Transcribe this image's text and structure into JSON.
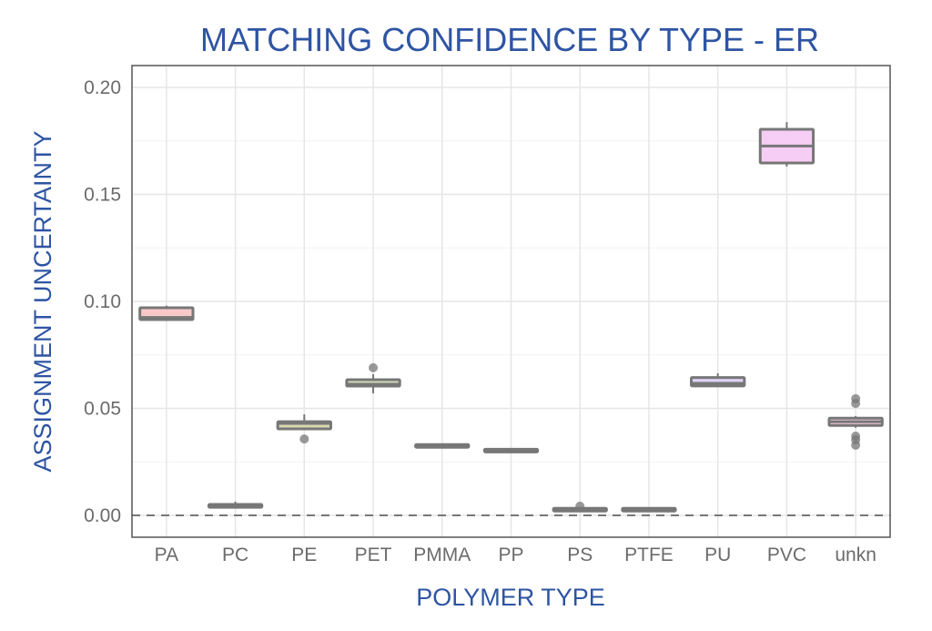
{
  "chart_data": {
    "type": "boxplot",
    "title": "MATCHING CONFIDENCE BY TYPE - ER",
    "xlabel": "POLYMER TYPE",
    "ylabel": "ASSIGNMENT UNCERTAINTY",
    "ylim": [
      -0.004,
      0.211
    ],
    "yticks": [
      "0.00",
      "0.05",
      "0.10",
      "0.15",
      "0.20"
    ],
    "ytick_values": [
      0,
      0.05,
      0.1,
      0.15,
      0.2
    ],
    "grid": true,
    "reference_line": {
      "y": 0,
      "style": "dashed"
    },
    "categories": [
      "PA",
      "PC",
      "PE",
      "PET",
      "PMMA",
      "PP",
      "PS",
      "PTFE",
      "PU",
      "PVC",
      "unkn"
    ],
    "boxes": [
      {
        "name": "PA",
        "lower": 0.091,
        "q1": 0.0915,
        "median": 0.0925,
        "q3": 0.097,
        "upper": 0.098,
        "outliers": [],
        "fill": "#f9c9c9"
      },
      {
        "name": "PC",
        "lower": 0.0038,
        "q1": 0.0038,
        "median": 0.0045,
        "q3": 0.0051,
        "upper": 0.0064,
        "outliers": [],
        "fill": "#e6dcc0"
      },
      {
        "name": "PE",
        "lower": 0.0404,
        "q1": 0.0404,
        "median": 0.043,
        "q3": 0.0438,
        "upper": 0.0472,
        "outliers": [
          0.0357
        ],
        "fill": "#d9d7b0"
      },
      {
        "name": "PET",
        "lower": 0.057,
        "q1": 0.0604,
        "median": 0.0613,
        "q3": 0.0634,
        "upper": 0.066,
        "outliers": [
          0.069
        ],
        "fill": "#cfd9b8"
      },
      {
        "name": "PMMA",
        "lower": 0.0325,
        "q1": 0.0325,
        "median": 0.0328,
        "q3": 0.0331,
        "upper": 0.0331,
        "outliers": [],
        "fill": "#c8e0c8"
      },
      {
        "name": "PP",
        "lower": 0.0303,
        "q1": 0.0303,
        "median": 0.0306,
        "q3": 0.0309,
        "upper": 0.0309,
        "outliers": [],
        "fill": "#c5e3e3"
      },
      {
        "name": "PS",
        "lower": 0.0027,
        "q1": 0.0027,
        "median": 0.003,
        "q3": 0.0033,
        "upper": 0.0033,
        "outliers": [
          0.0043
        ],
        "fill": "#c8dcef"
      },
      {
        "name": "PTFE",
        "lower": 0.0027,
        "q1": 0.0027,
        "median": 0.003,
        "q3": 0.0033,
        "upper": 0.0033,
        "outliers": [],
        "fill": "#d0d4f2"
      },
      {
        "name": "PU",
        "lower": 0.0605,
        "q1": 0.0605,
        "median": 0.0617,
        "q3": 0.0644,
        "upper": 0.0664,
        "outliers": [],
        "fill": "#dcd2f4"
      },
      {
        "name": "PVC",
        "lower": 0.163,
        "q1": 0.1647,
        "median": 0.1726,
        "q3": 0.1804,
        "upper": 0.1838,
        "outliers": [],
        "fill": "#f6cdf4"
      },
      {
        "name": "unkn",
        "lower": 0.0409,
        "q1": 0.042,
        "median": 0.0438,
        "q3": 0.0454,
        "upper": 0.0464,
        "outliers": [
          0.0545,
          0.0523,
          0.037,
          0.0353,
          0.0328
        ],
        "fill": "#f6cde0"
      }
    ]
  }
}
